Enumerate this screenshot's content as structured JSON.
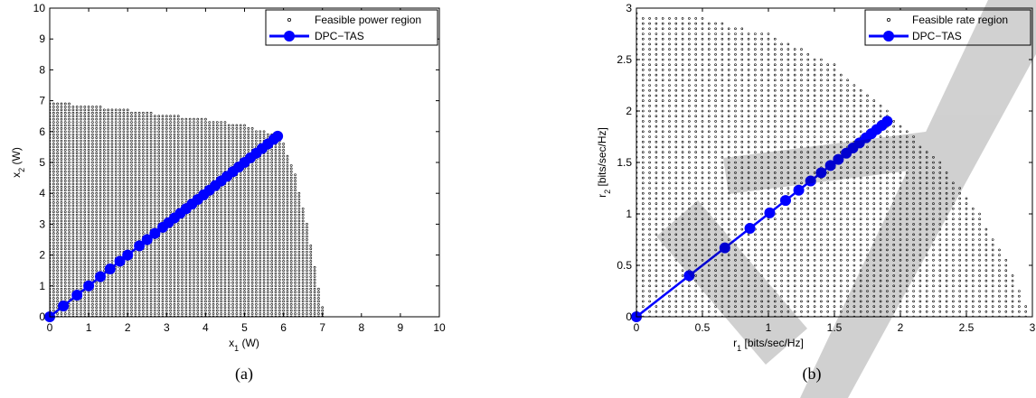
{
  "chart_data": [
    {
      "type": "scatter",
      "panel_label": "(a)",
      "xlabel": "x",
      "xlabel_sub": "1",
      "xlabel_unit": " (W)",
      "ylabel": "x",
      "ylabel_sub": "2",
      "ylabel_unit": " (W)",
      "xlim": [
        0,
        10
      ],
      "ylim": [
        0,
        10
      ],
      "xticks": [
        "0",
        "1",
        "2",
        "3",
        "4",
        "5",
        "6",
        "7",
        "8",
        "9",
        "10"
      ],
      "yticks": [
        "0",
        "1",
        "2",
        "3",
        "4",
        "5",
        "6",
        "7",
        "8",
        "9",
        "10"
      ],
      "grid": false,
      "legend_position": "top-right",
      "legend": [
        "Feasible power region",
        "DPC−TAS"
      ],
      "series": [
        {
          "name": "Feasible power region",
          "kind": "region_points",
          "boundary": [
            [
              0,
              6.95
            ],
            [
              1,
              6.85
            ],
            [
              2,
              6.7
            ],
            [
              3,
              6.55
            ],
            [
              4,
              6.4
            ],
            [
              5,
              6.2
            ],
            [
              5.8,
              5.9
            ],
            [
              6.0,
              5.6
            ],
            [
              6.3,
              4.6
            ],
            [
              6.6,
              3.0
            ],
            [
              6.85,
              1.3
            ],
            [
              7.0,
              0.3
            ],
            [
              7.05,
              0
            ]
          ],
          "color": "#000000"
        },
        {
          "name": "DPC−TAS",
          "kind": "line_markers",
          "x": [
            0,
            0.35,
            0.7,
            1.0,
            1.3,
            1.55,
            1.8,
            2.0,
            2.3,
            2.5,
            2.7,
            2.9,
            3.05,
            3.2,
            3.35,
            3.5,
            3.65,
            3.8,
            3.95,
            4.1,
            4.25,
            4.4,
            4.55,
            4.7,
            4.85,
            5.0,
            5.15,
            5.3,
            5.45,
            5.6,
            5.75,
            5.85
          ],
          "y": [
            0,
            0.35,
            0.7,
            1.0,
            1.3,
            1.55,
            1.8,
            2.0,
            2.3,
            2.5,
            2.7,
            2.9,
            3.05,
            3.2,
            3.35,
            3.5,
            3.65,
            3.8,
            3.95,
            4.1,
            4.25,
            4.4,
            4.55,
            4.7,
            4.85,
            5.0,
            5.15,
            5.3,
            5.45,
            5.6,
            5.75,
            5.85
          ],
          "color": "#0000ff"
        }
      ]
    },
    {
      "type": "scatter",
      "panel_label": "(b)",
      "xlabel": "r",
      "xlabel_sub": "1",
      "xlabel_unit": " [bits/sec/Hz]",
      "ylabel": "r",
      "ylabel_sub": "2",
      "ylabel_unit": " [bits/sec/Hz]",
      "xlim": [
        0,
        3
      ],
      "ylim": [
        0,
        3
      ],
      "xticks": [
        "0",
        "0.5",
        "1",
        "1.5",
        "2",
        "2.5",
        "3"
      ],
      "yticks": [
        "0",
        "0.5",
        "1",
        "1.5",
        "2",
        "2.5",
        "3"
      ],
      "grid": false,
      "legend_position": "top-right",
      "legend": [
        "Feasible rate region",
        "DPC−TAS"
      ],
      "series": [
        {
          "name": "Feasible rate region",
          "kind": "region_points",
          "boundary": [
            [
              0,
              2.95
            ],
            [
              0.5,
              2.9
            ],
            [
              1.0,
              2.75
            ],
            [
              1.5,
              2.45
            ],
            [
              1.9,
              2.0
            ],
            [
              2.3,
              1.5
            ],
            [
              2.6,
              1.0
            ],
            [
              2.8,
              0.55
            ],
            [
              2.95,
              0.1
            ],
            [
              2.97,
              0
            ]
          ],
          "color": "#000000"
        },
        {
          "name": "DPC−TAS",
          "kind": "line_markers",
          "x": [
            0,
            0.4,
            0.67,
            0.86,
            1.01,
            1.13,
            1.23,
            1.32,
            1.4,
            1.47,
            1.53,
            1.59,
            1.64,
            1.69,
            1.74,
            1.78,
            1.82,
            1.86,
            1.9
          ],
          "y": [
            0,
            0.4,
            0.67,
            0.86,
            1.01,
            1.13,
            1.23,
            1.32,
            1.4,
            1.47,
            1.53,
            1.59,
            1.64,
            1.69,
            1.74,
            1.78,
            1.82,
            1.86,
            1.9
          ],
          "color": "#0000ff"
        }
      ]
    }
  ]
}
